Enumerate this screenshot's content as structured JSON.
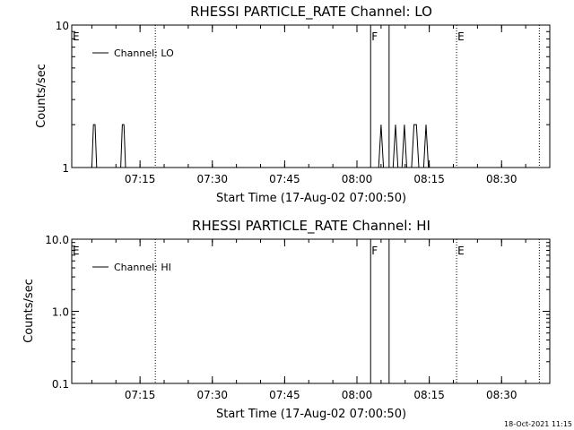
{
  "chart_data": [
    {
      "type": "line",
      "title": "RHESSI PARTICLE_RATE Channel: LO",
      "xlabel": "Start Time (17-Aug-02 07:00:50)",
      "ylabel": "Counts/sec",
      "y_scale": "log",
      "ylim": [
        1,
        10
      ],
      "y_ticks": [
        {
          "value": 1,
          "label": "1"
        },
        {
          "value": 10,
          "label": "10"
        }
      ],
      "xlim": [
        "07:00:50",
        "08:40:00"
      ],
      "x_ticks": [
        "07:15",
        "07:30",
        "07:45",
        "08:00",
        "08:15",
        "08:30"
      ],
      "legend": {
        "label": "Channel: LO",
        "placement": "top-left"
      },
      "grid": false,
      "series": [
        {
          "name": "Channel: LO",
          "points": [
            [
              "07:05:00",
              1
            ],
            [
              "07:05:20",
              2
            ],
            [
              "07:05:40",
              2
            ],
            [
              "07:06:00",
              1
            ],
            [
              "07:11:00",
              1
            ],
            [
              "07:11:20",
              2
            ],
            [
              "07:11:40",
              2
            ],
            [
              "07:12:00",
              1
            ],
            [
              "08:04:30",
              1
            ],
            [
              "08:05:00",
              2
            ],
            [
              "08:05:30",
              1
            ],
            [
              "08:07:30",
              1
            ],
            [
              "08:08:00",
              2
            ],
            [
              "08:08:30",
              1
            ],
            [
              "08:09:20",
              1
            ],
            [
              "08:09:50",
              2
            ],
            [
              "08:10:20",
              1
            ],
            [
              "08:11:20",
              1
            ],
            [
              "08:11:50",
              2
            ],
            [
              "08:12:20",
              2
            ],
            [
              "08:12:50",
              1
            ],
            [
              "08:13:50",
              1
            ],
            [
              "08:14:20",
              2
            ],
            [
              "08:14:50",
              1
            ]
          ]
        }
      ],
      "markers": [
        {
          "time": "07:00:50",
          "label": "E",
          "style": "none"
        },
        {
          "time": "07:18:10",
          "label": "",
          "style": "dotted"
        },
        {
          "time": "08:02:50",
          "label": "F",
          "style": "solid"
        },
        {
          "time": "08:06:40",
          "label": "",
          "style": "solid"
        },
        {
          "time": "08:20:40",
          "label": "E",
          "style": "dotted"
        },
        {
          "time": "08:37:50",
          "label": "",
          "style": "dotted"
        }
      ]
    },
    {
      "type": "line",
      "title": "RHESSI PARTICLE_RATE Channel: HI",
      "xlabel": "Start Time (17-Aug-02 07:00:50)",
      "ylabel": "Counts/sec",
      "y_scale": "log",
      "ylim": [
        0.1,
        10
      ],
      "y_ticks": [
        {
          "value": 0.1,
          "label": "0.1"
        },
        {
          "value": 1,
          "label": "1.0"
        },
        {
          "value": 10,
          "label": "10.0"
        }
      ],
      "xlim": [
        "07:00:50",
        "08:40:00"
      ],
      "x_ticks": [
        "07:15",
        "07:30",
        "07:45",
        "08:00",
        "08:15",
        "08:30"
      ],
      "legend": {
        "label": "Channel: HI",
        "placement": "top-left"
      },
      "grid": false,
      "series": [
        {
          "name": "Channel: HI",
          "points": []
        }
      ],
      "markers": [
        {
          "time": "07:00:50",
          "label": "E",
          "style": "none"
        },
        {
          "time": "07:18:10",
          "label": "",
          "style": "dotted"
        },
        {
          "time": "08:02:50",
          "label": "F",
          "style": "solid"
        },
        {
          "time": "08:06:40",
          "label": "",
          "style": "solid"
        },
        {
          "time": "08:20:40",
          "label": "E",
          "style": "dotted"
        },
        {
          "time": "08:37:50",
          "label": "",
          "style": "dotted"
        }
      ]
    }
  ],
  "footer": {
    "timestamp": "18-Oct-2021 11:15"
  },
  "colors": {
    "background": "#ffffff",
    "foreground": "#000000"
  }
}
